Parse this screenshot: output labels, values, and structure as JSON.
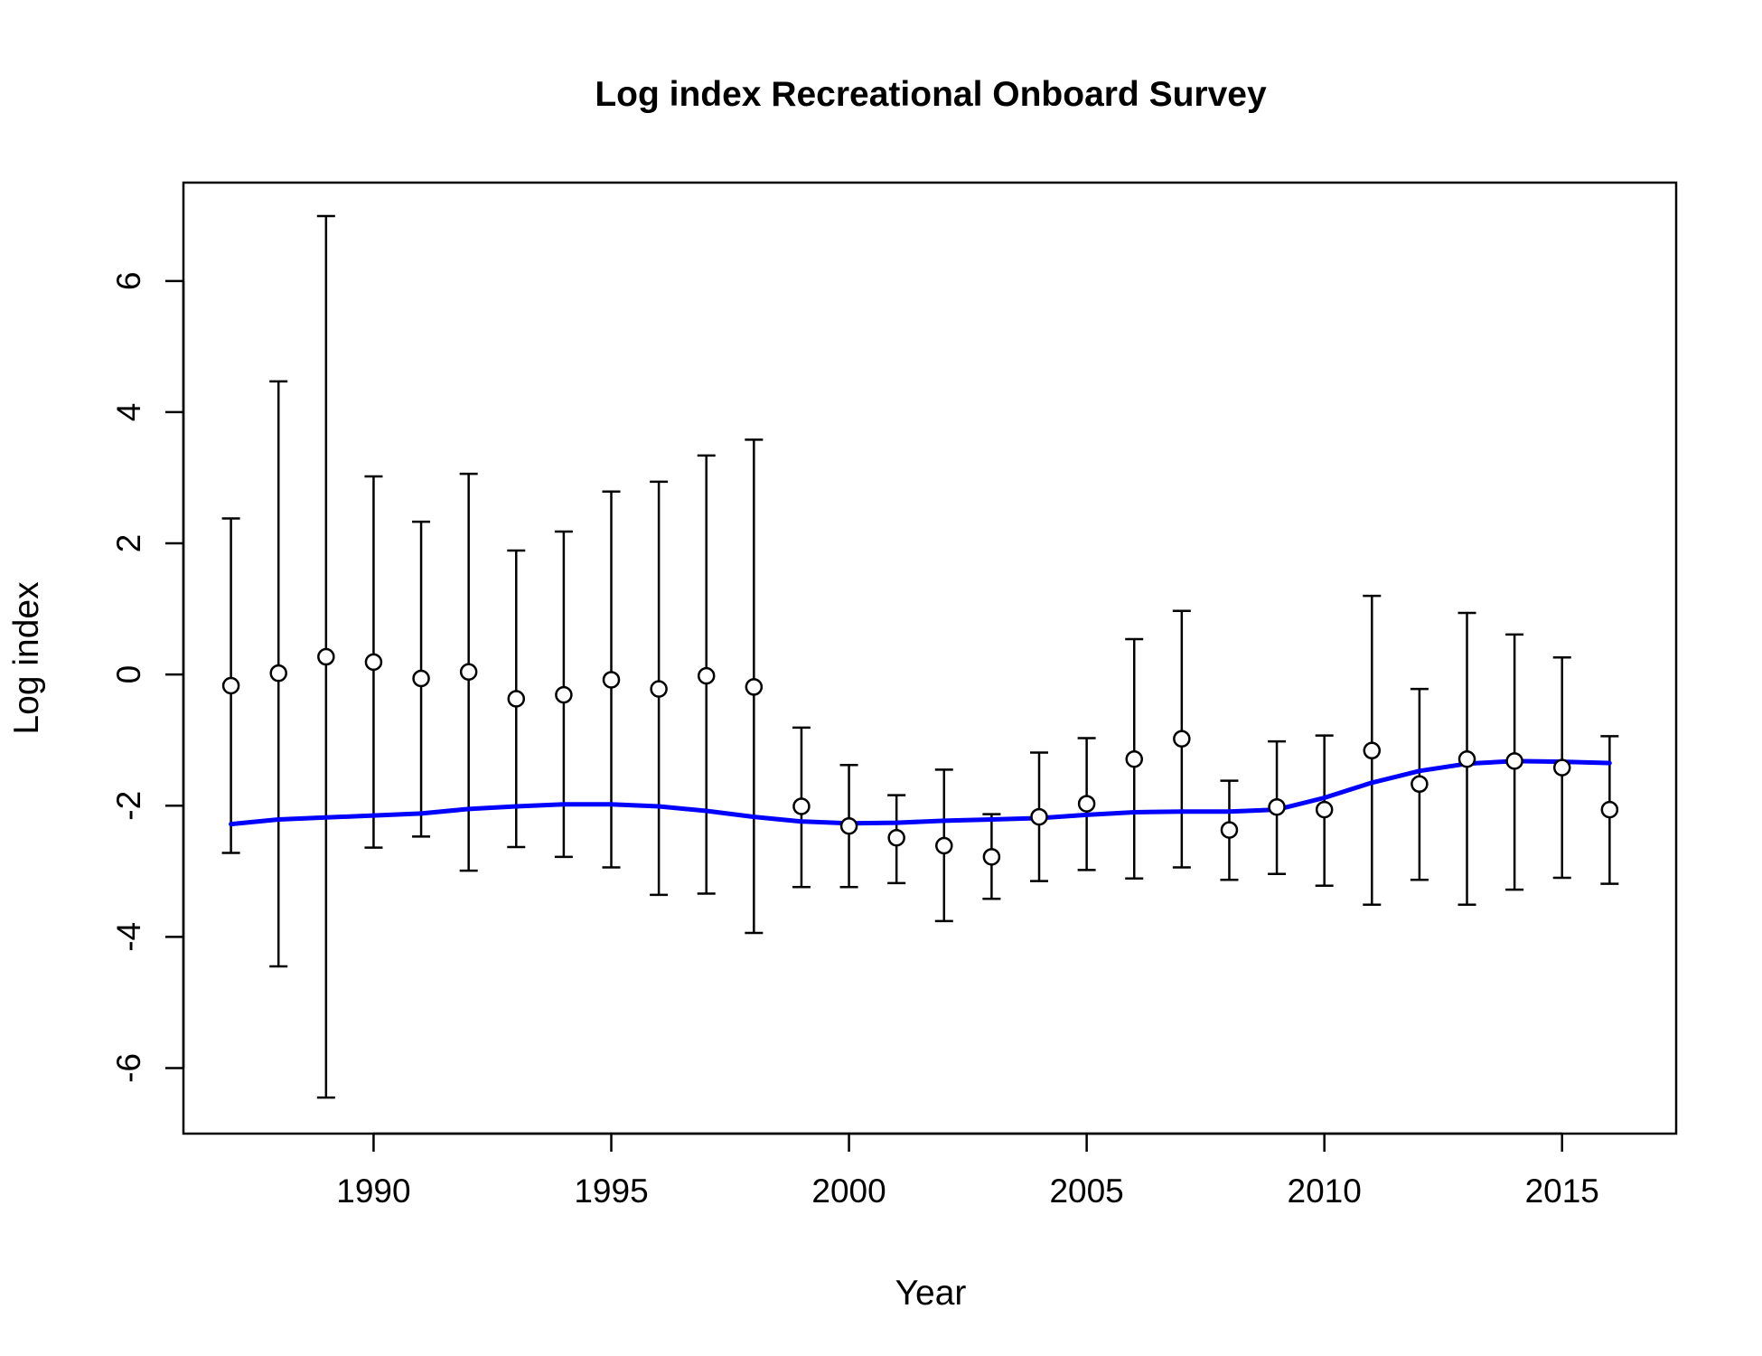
{
  "chart_data": {
    "type": "scatter",
    "title": "Log index Recreational Onboard Survey",
    "xlabel": "Year",
    "ylabel": "Log index",
    "xlim": [
      1986,
      2017.4
    ],
    "ylim": [
      -7,
      7.5
    ],
    "x_ticks": [
      1990,
      1995,
      2000,
      2005,
      2010,
      2015
    ],
    "x_tick_labels": [
      "1990",
      "1995",
      "2000",
      "2005",
      "2010",
      "2015"
    ],
    "y_ticks": [
      -6,
      -4,
      -2,
      0,
      2,
      4,
      6
    ],
    "y_tick_labels": [
      "-6",
      "-4",
      "-2",
      "0",
      "2",
      "4",
      "6"
    ],
    "grid": false,
    "colors": {
      "fit_line": "#0000ff",
      "points": "#000000",
      "axes": "#000000"
    },
    "series": [
      {
        "kind": "observed-with-intervals",
        "x": [
          1987,
          1988,
          1989,
          1990,
          1991,
          1992,
          1993,
          1994,
          1995,
          1996,
          1997,
          1998,
          1999,
          2000,
          2001,
          2002,
          2003,
          2004,
          2005,
          2006,
          2007,
          2008,
          2009,
          2010,
          2011,
          2012,
          2013,
          2014,
          2015,
          2016
        ],
        "values": [
          -0.17,
          0.02,
          0.27,
          0.19,
          -0.06,
          0.04,
          -0.37,
          -0.31,
          -0.08,
          -0.22,
          -0.02,
          -0.19,
          -2.01,
          -2.31,
          -2.49,
          -2.61,
          -2.78,
          -2.17,
          -1.97,
          -1.29,
          -0.98,
          -2.37,
          -2.02,
          -2.06,
          -1.16,
          -1.67,
          -1.29,
          -1.32,
          -1.42,
          -2.06
        ],
        "lower": [
          -2.72,
          -4.45,
          -6.45,
          -2.64,
          -2.47,
          -2.99,
          -2.63,
          -2.78,
          -2.94,
          -3.36,
          -3.34,
          -3.94,
          -3.24,
          -3.24,
          -3.18,
          -3.76,
          -3.42,
          -3.15,
          -2.98,
          -3.11,
          -2.94,
          -3.13,
          -3.04,
          -3.22,
          -3.51,
          -3.13,
          -3.51,
          -3.28,
          -3.1,
          -3.19
        ],
        "upper": [
          2.38,
          4.47,
          6.99,
          3.02,
          2.33,
          3.06,
          1.89,
          2.18,
          2.79,
          2.94,
          3.34,
          3.58,
          -0.81,
          -1.38,
          -1.84,
          -1.45,
          -2.13,
          -1.19,
          -0.97,
          0.54,
          0.97,
          -1.62,
          -1.02,
          -0.93,
          1.2,
          -0.22,
          0.94,
          0.61,
          0.26,
          -0.94
        ]
      },
      {
        "kind": "fitted-line",
        "x": [
          1987,
          1988,
          1989,
          1990,
          1991,
          1992,
          1993,
          1994,
          1995,
          1996,
          1997,
          1998,
          1999,
          2000,
          2001,
          2002,
          2003,
          2004,
          2005,
          2006,
          2007,
          2008,
          2009,
          2010,
          2011,
          2012,
          2013,
          2014,
          2015,
          2016
        ],
        "values": [
          -2.28,
          -2.21,
          -2.18,
          -2.15,
          -2.12,
          -2.05,
          -2.01,
          -1.98,
          -1.98,
          -2.01,
          -2.08,
          -2.17,
          -2.24,
          -2.27,
          -2.26,
          -2.23,
          -2.21,
          -2.19,
          -2.14,
          -2.1,
          -2.09,
          -2.09,
          -2.06,
          -1.88,
          -1.65,
          -1.47,
          -1.36,
          -1.32,
          -1.33,
          -1.35
        ]
      }
    ]
  }
}
